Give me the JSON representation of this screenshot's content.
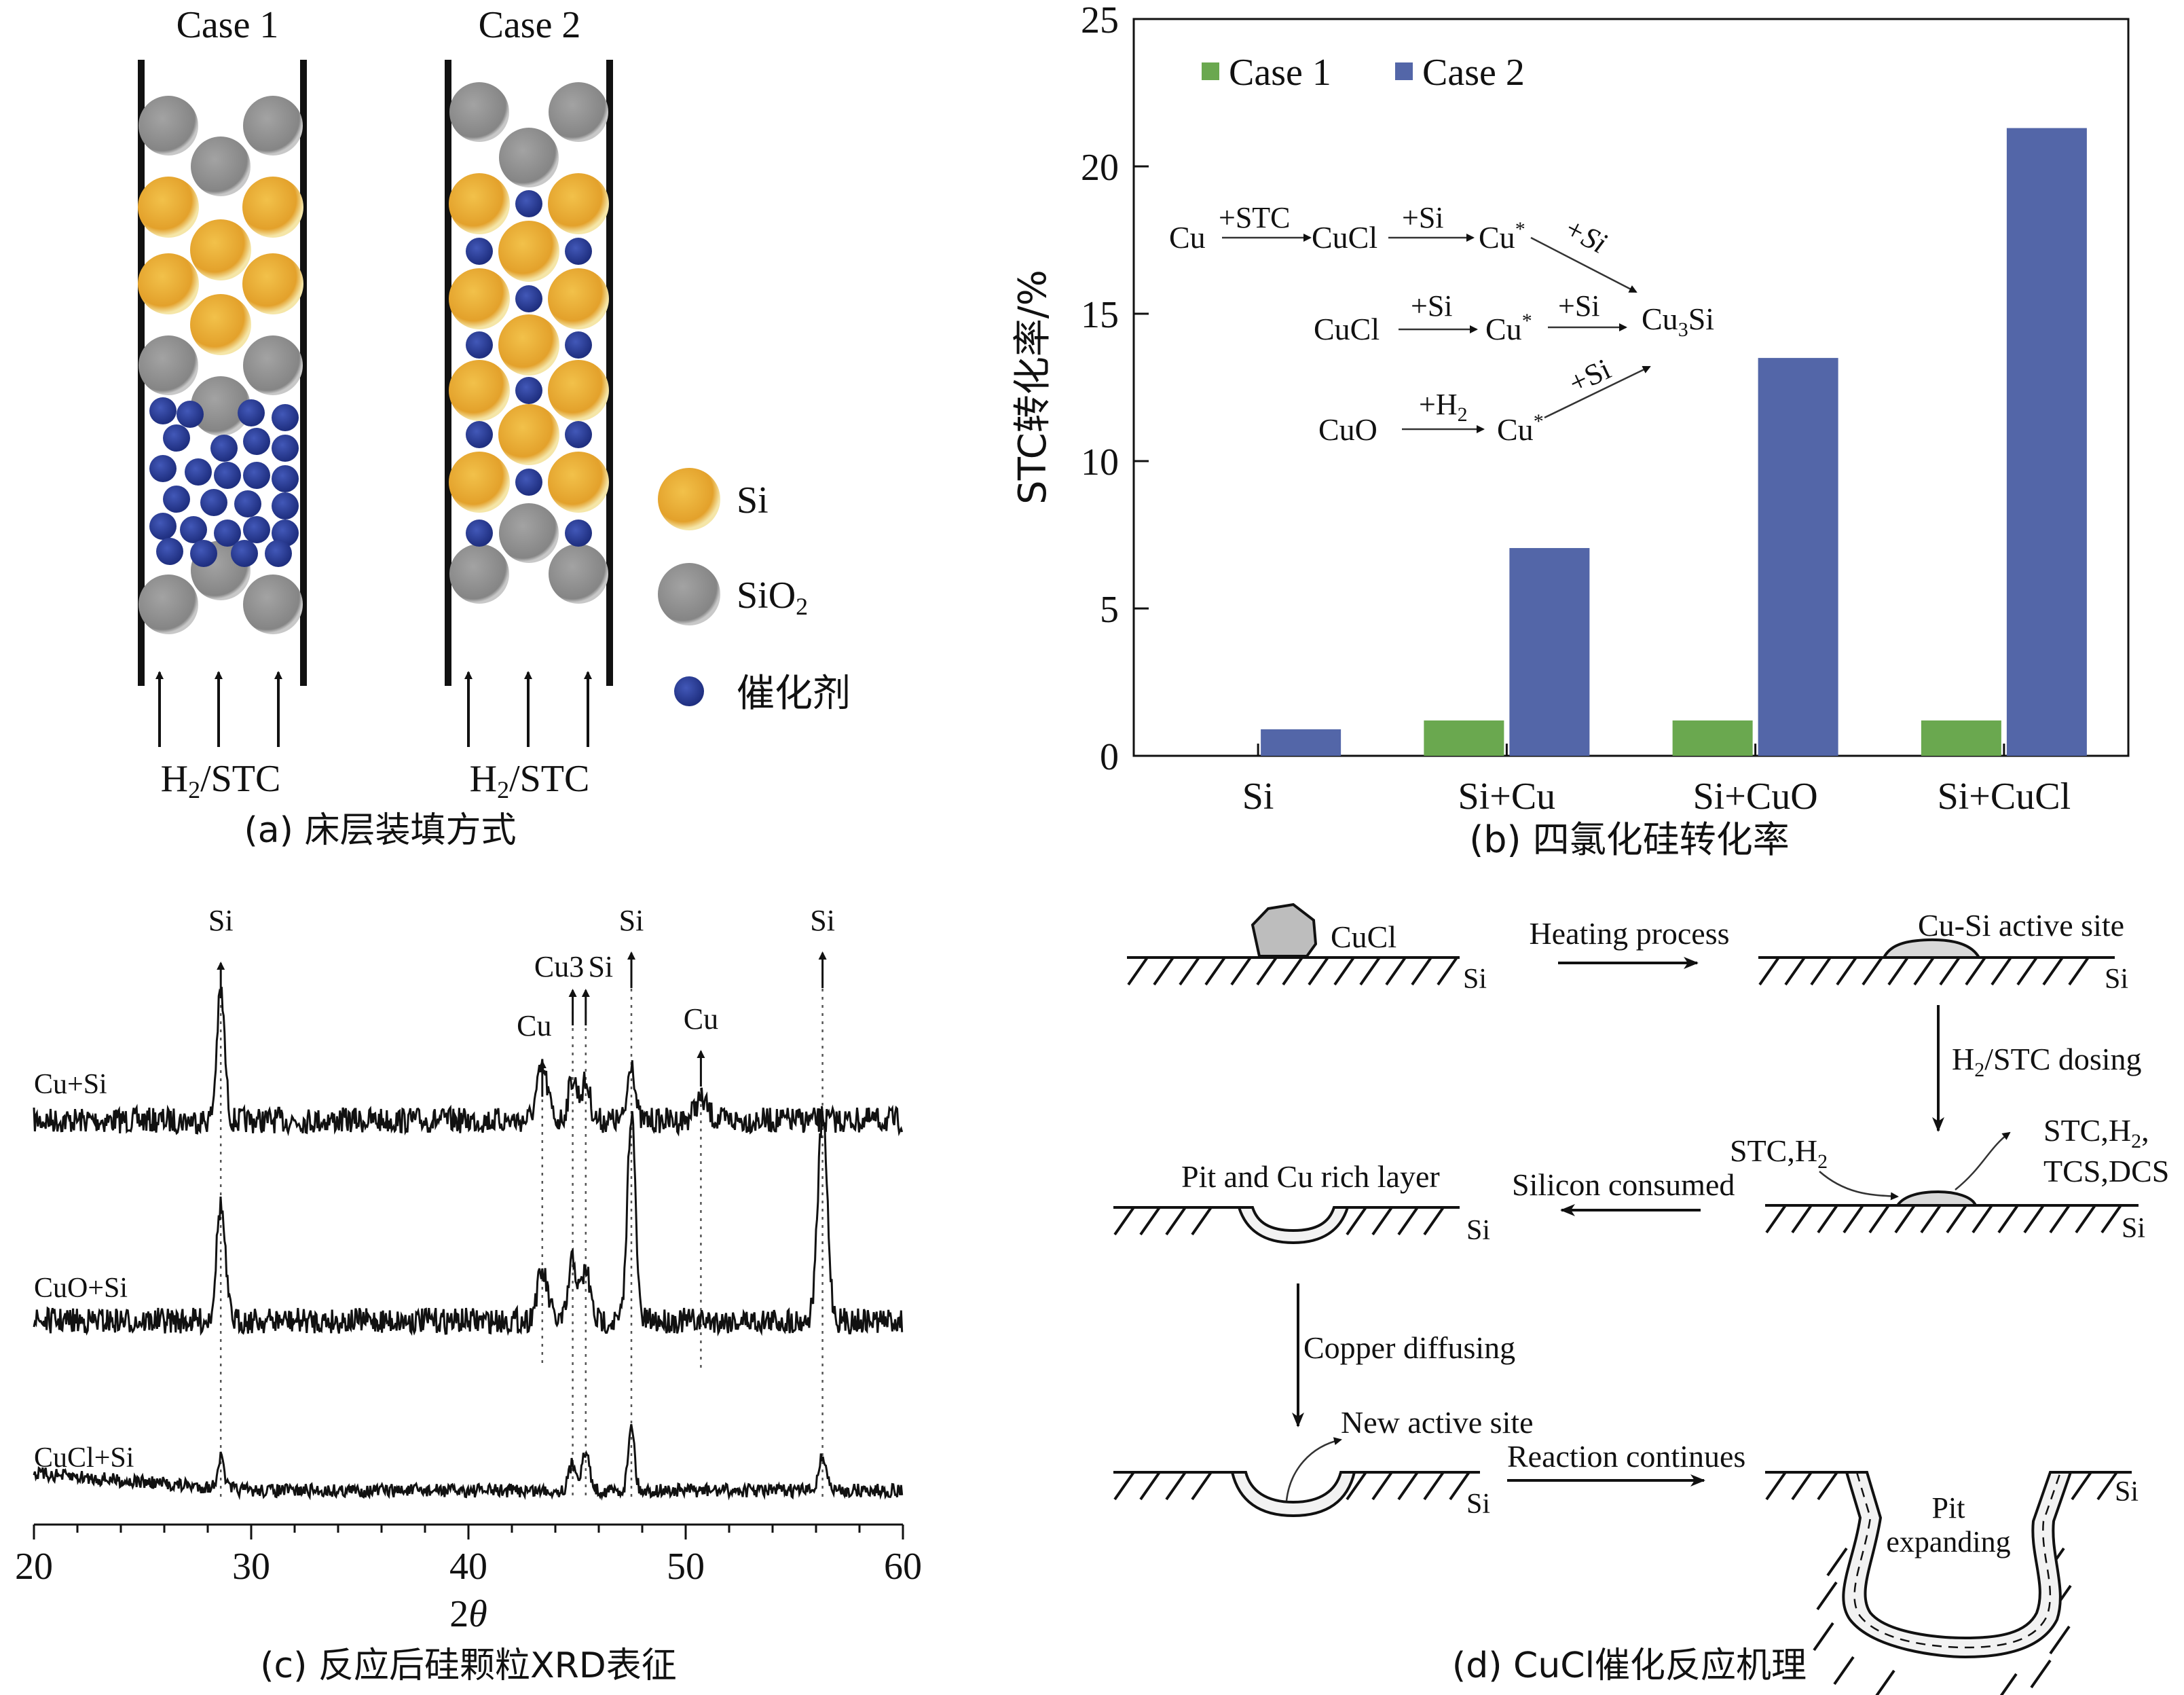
{
  "panel_a": {
    "case1": "Case 1",
    "case2": "Case 2",
    "gas1": "H2/STC",
    "gas2": "H2/STC",
    "legend": {
      "si": "Si",
      "sio2": "SiO2",
      "cat": "催化剂"
    },
    "caption": "(a) 床层装填方式",
    "colors": {
      "si": "#e3a12b",
      "sio2": "#8c8c8c",
      "cat": "#2b3d96"
    }
  },
  "panel_b": {
    "caption": "(b) 四氯化硅转化率",
    "inset": {
      "row1": {
        "a": "Cu",
        "s1": "+STC",
        "b": "CuCl",
        "s2": "+Si",
        "c": "Cu*",
        "s3": "+Si"
      },
      "row2": {
        "a": "CuCl",
        "s1": "+Si",
        "b": "Cu*",
        "s2": "+Si",
        "c": "Cu3Si"
      },
      "row3": {
        "a": "CuO",
        "s1": "+H2",
        "b": "Cu*",
        "s2": "+Si"
      }
    }
  },
  "panel_c": {
    "caption": "(c) 反应后硅颗粒XRD表征",
    "xlabel": "2θ",
    "xticks": [
      "20",
      "30",
      "40",
      "50",
      "60"
    ],
    "traces": [
      "Cu+Si",
      "CuO+Si",
      "CuCl+Si"
    ],
    "peaks": {
      "si1": "Si",
      "cu1": "Cu",
      "cu3": "Cu3",
      "si2": "Si",
      "si3": "Si",
      "cu2": "Cu",
      "si4": "Si"
    }
  },
  "panel_d": {
    "caption": "(d) CuCl催化反应机理",
    "cucl": "CuCl",
    "heating": "Heating process",
    "active_site": "Cu-Si active site",
    "dosing": "H2/STC dosing",
    "stc_in": "STC,H2",
    "products1": "STC,H2,",
    "products2": "TCS,DCS",
    "pit_rich": "Pit and Cu rich layer",
    "si_consumed": "Silicon consumed",
    "cu_diffusing": "Copper diffusing",
    "new_site": "New active site",
    "continues": "Reaction continues",
    "pit1": "Pit",
    "pit2": "expanding",
    "si_label": "Si"
  },
  "chart_data": {
    "type": "bar",
    "categories": [
      "Si",
      "Si+Cu",
      "Si+CuO",
      "Si+CuCl"
    ],
    "series": [
      {
        "name": "Case 1",
        "color": "#6aa84f",
        "values": [
          0,
          1.2,
          1.2,
          1.2
        ]
      },
      {
        "name": "Case 2",
        "color": "#5366a8",
        "values": [
          0.9,
          7.05,
          13.5,
          21.3
        ]
      }
    ],
    "ylabel": "STC转化率/%",
    "ylim": [
      0,
      25
    ],
    "yticks": [
      0,
      5,
      10,
      15,
      20,
      25
    ],
    "legend_position": "top-left"
  }
}
